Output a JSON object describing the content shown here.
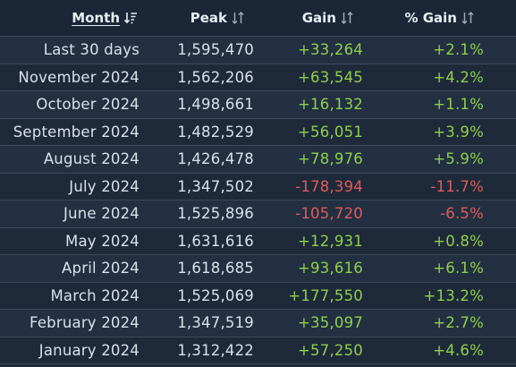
{
  "header": {
    "month": "Month",
    "peak": "Peak",
    "gain": "Gain",
    "pct_gain": "% Gain"
  },
  "colors": {
    "positive": "#8fcf4a",
    "negative": "#e05a5a",
    "background": "#1e2a3a"
  },
  "rows": [
    {
      "month": "Last 30 days",
      "peak": "1,595,470",
      "gain": "+33,264",
      "pct": "+2.1%",
      "sign": "pos"
    },
    {
      "month": "November 2024",
      "peak": "1,562,206",
      "gain": "+63,545",
      "pct": "+4.2%",
      "sign": "pos"
    },
    {
      "month": "October 2024",
      "peak": "1,498,661",
      "gain": "+16,132",
      "pct": "+1.1%",
      "sign": "pos"
    },
    {
      "month": "September 2024",
      "peak": "1,482,529",
      "gain": "+56,051",
      "pct": "+3.9%",
      "sign": "pos"
    },
    {
      "month": "August 2024",
      "peak": "1,426,478",
      "gain": "+78,976",
      "pct": "+5.9%",
      "sign": "pos"
    },
    {
      "month": "July 2024",
      "peak": "1,347,502",
      "gain": "-178,394",
      "pct": "-11.7%",
      "sign": "neg"
    },
    {
      "month": "June 2024",
      "peak": "1,525,896",
      "gain": "-105,720",
      "pct": "-6.5%",
      "sign": "neg"
    },
    {
      "month": "May 2024",
      "peak": "1,631,616",
      "gain": "+12,931",
      "pct": "+0.8%",
      "sign": "pos"
    },
    {
      "month": "April 2024",
      "peak": "1,618,685",
      "gain": "+93,616",
      "pct": "+6.1%",
      "sign": "pos"
    },
    {
      "month": "March 2024",
      "peak": "1,525,069",
      "gain": "+177,550",
      "pct": "+13.2%",
      "sign": "pos"
    },
    {
      "month": "February 2024",
      "peak": "1,347,519",
      "gain": "+35,097",
      "pct": "+2.7%",
      "sign": "pos"
    },
    {
      "month": "January 2024",
      "peak": "1,312,422",
      "gain": "+57,250",
      "pct": "+4.6%",
      "sign": "pos"
    }
  ]
}
